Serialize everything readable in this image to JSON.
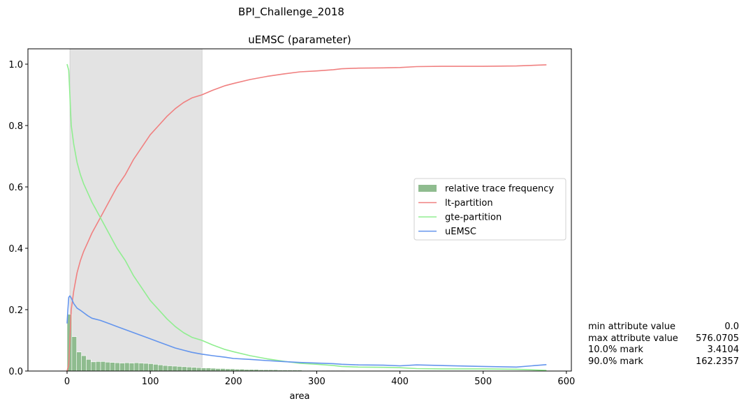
{
  "suptitle": "BPI_Challenge_2018",
  "chart_data": {
    "type": "line",
    "title": "uEMSC (parameter)",
    "xlabel": "area",
    "ylabel": "",
    "xlim": [
      -47,
      606
    ],
    "ylim": [
      0,
      1.05
    ],
    "xticks": [
      0,
      100,
      200,
      300,
      400,
      500,
      600
    ],
    "yticks": [
      0.0,
      0.2,
      0.4,
      0.6,
      0.8,
      1.0
    ],
    "xtick_labels": [
      "0",
      "100",
      "200",
      "300",
      "400",
      "500",
      "600"
    ],
    "ytick_labels": [
      "0.0",
      "0.2",
      "0.4",
      "0.6",
      "0.8",
      "1.0"
    ],
    "grid": false,
    "legend_position": "center-right",
    "shaded_region": {
      "x_start": 3.4104,
      "x_end": 162.2357,
      "color": "#e3e3e3"
    },
    "histogram": {
      "name": "relative trace frequency",
      "color": "#8fbc8f",
      "bin_width": 5.76,
      "bin_starts": [
        0,
        5.76,
        11.52,
        17.28,
        23.04,
        28.8,
        34.56,
        40.32,
        46.08,
        51.84,
        57.6,
        63.36,
        69.12,
        74.88,
        80.64,
        86.4,
        92.16,
        97.92,
        103.68,
        109.44,
        115.2,
        120.96,
        126.72,
        132.48,
        138.24,
        144.0,
        149.76,
        155.52,
        161.28,
        167.04,
        172.8,
        178.56,
        184.32,
        190.08,
        195.84,
        201.6,
        207.36,
        213.12,
        218.88,
        224.64,
        230.4,
        236.16,
        241.92,
        247.68,
        253.44,
        259.2,
        264.96,
        270.72,
        276.48,
        282.24,
        288.0,
        293.76,
        299.52,
        305.28,
        311.04,
        316.8,
        322.56,
        328.32,
        334.08,
        339.84,
        345.6,
        351.36,
        357.12,
        362.88,
        368.64,
        374.4,
        380.16,
        385.92,
        391.68,
        397.44,
        403.2,
        408.96,
        414.72,
        420.48,
        426.24,
        432.0,
        437.76,
        443.52,
        449.28,
        455.04,
        460.8,
        466.56,
        472.32,
        478.08,
        483.84,
        489.6,
        495.36,
        501.12,
        506.88,
        512.64,
        518.4,
        524.16,
        529.92,
        535.68,
        541.44,
        547.2,
        552.96,
        558.72,
        564.48,
        570.24
      ],
      "values": [
        0.185,
        0.112,
        0.062,
        0.05,
        0.038,
        0.03,
        0.031,
        0.031,
        0.029,
        0.028,
        0.027,
        0.026,
        0.027,
        0.026,
        0.027,
        0.026,
        0.025,
        0.024,
        0.022,
        0.02,
        0.018,
        0.017,
        0.016,
        0.015,
        0.014,
        0.013,
        0.012,
        0.011,
        0.01,
        0.01,
        0.009,
        0.008,
        0.008,
        0.007,
        0.007,
        0.006,
        0.006,
        0.005,
        0.005,
        0.005,
        0.004,
        0.004,
        0.004,
        0.004,
        0.003,
        0.003,
        0.003,
        0.003,
        0.003,
        0.002,
        0.002,
        0.002,
        0.002,
        0.002,
        0.002,
        0.002,
        0.002,
        0.002,
        0.001,
        0.001,
        0.001,
        0.001,
        0.001,
        0.001,
        0.001,
        0.001,
        0.001,
        0.001,
        0.001,
        0.001,
        0.001,
        0.001,
        0.001,
        0.001,
        0.001,
        0.001,
        0.001,
        0.001,
        0.001,
        0.001,
        0.001,
        0.001,
        0.001,
        0.001,
        0.001,
        0.001,
        0.001,
        0.001,
        0.001,
        0.001,
        0.001,
        0.001,
        0.001,
        0.001,
        0.001,
        0.001,
        0.001,
        0.001,
        0.001,
        0.001
      ]
    },
    "series": [
      {
        "name": "lt-partition",
        "color": "#f08080",
        "x": [
          0,
          2,
          3.4,
          5,
          8,
          12,
          16,
          20,
          25,
          30,
          35,
          40,
          50,
          60,
          70,
          80,
          90,
          100,
          110,
          120,
          130,
          140,
          150,
          162,
          175,
          190,
          200,
          220,
          240,
          260,
          280,
          300,
          320,
          330,
          350,
          380,
          400,
          420,
          450,
          500,
          540,
          576
        ],
        "y": [
          0.0,
          0.02,
          0.1,
          0.2,
          0.26,
          0.32,
          0.36,
          0.39,
          0.42,
          0.45,
          0.475,
          0.5,
          0.55,
          0.6,
          0.64,
          0.69,
          0.73,
          0.77,
          0.8,
          0.83,
          0.855,
          0.875,
          0.89,
          0.9,
          0.915,
          0.93,
          0.937,
          0.95,
          0.96,
          0.968,
          0.975,
          0.978,
          0.982,
          0.985,
          0.987,
          0.988,
          0.989,
          0.992,
          0.993,
          0.993,
          0.994,
          0.998
        ]
      },
      {
        "name": "gte-partition",
        "color": "#90ee90",
        "x": [
          0,
          2,
          3.4,
          5,
          8,
          12,
          16,
          20,
          25,
          30,
          35,
          40,
          50,
          60,
          70,
          80,
          90,
          100,
          110,
          120,
          130,
          140,
          150,
          162,
          175,
          190,
          200,
          220,
          240,
          260,
          280,
          300,
          320,
          330,
          350,
          380,
          400,
          420,
          450,
          500,
          540,
          576
        ],
        "y": [
          1.0,
          0.98,
          0.9,
          0.8,
          0.74,
          0.68,
          0.64,
          0.61,
          0.58,
          0.55,
          0.525,
          0.5,
          0.45,
          0.4,
          0.36,
          0.31,
          0.27,
          0.23,
          0.2,
          0.17,
          0.145,
          0.125,
          0.11,
          0.1,
          0.085,
          0.07,
          0.063,
          0.05,
          0.04,
          0.032,
          0.025,
          0.022,
          0.018,
          0.015,
          0.013,
          0.012,
          0.011,
          0.008,
          0.007,
          0.007,
          0.006,
          0.002
        ]
      },
      {
        "name": "uEMSC",
        "color": "#6495ed",
        "x": [
          0,
          1,
          2,
          3.4,
          5,
          8,
          12,
          16,
          20,
          25,
          30,
          40,
          50,
          60,
          70,
          80,
          90,
          100,
          110,
          120,
          130,
          140,
          150,
          162,
          175,
          190,
          200,
          220,
          240,
          260,
          280,
          300,
          320,
          330,
          350,
          380,
          400,
          420,
          450,
          500,
          540,
          576
        ],
        "y": [
          0.155,
          0.2,
          0.24,
          0.245,
          0.238,
          0.22,
          0.205,
          0.198,
          0.19,
          0.18,
          0.172,
          0.165,
          0.155,
          0.145,
          0.135,
          0.125,
          0.115,
          0.105,
          0.095,
          0.085,
          0.075,
          0.068,
          0.061,
          0.055,
          0.05,
          0.045,
          0.041,
          0.038,
          0.034,
          0.031,
          0.028,
          0.026,
          0.024,
          0.022,
          0.02,
          0.019,
          0.017,
          0.02,
          0.018,
          0.015,
          0.013,
          0.021
        ]
      }
    ]
  },
  "stats": [
    {
      "label": "min attribute value",
      "value": "0.0"
    },
    {
      "label": "max attribute value",
      "value": "576.0705"
    },
    {
      "label": "10.0% mark",
      "value": "3.4104"
    },
    {
      "label": "90.0% mark",
      "value": "162.2357"
    }
  ]
}
